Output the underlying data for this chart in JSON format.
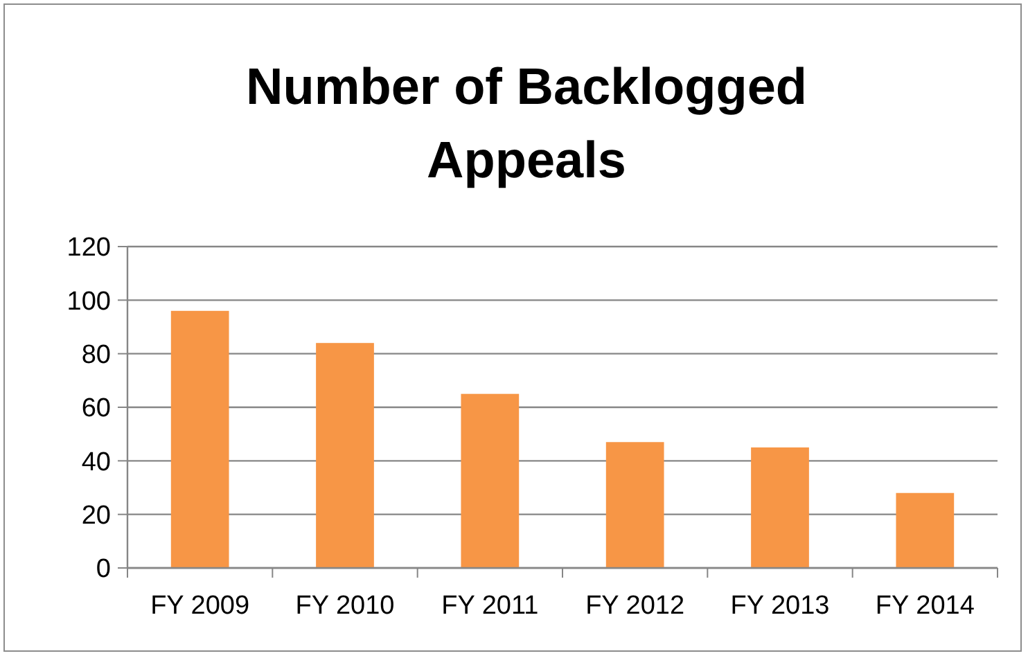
{
  "chart_data": {
    "type": "bar",
    "title": "Number of Backlogged Appeals",
    "categories": [
      "FY 2009",
      "FY 2010",
      "FY 2011",
      "FY 2012",
      "FY 2013",
      "FY 2014"
    ],
    "values": [
      96,
      84,
      65,
      47,
      45,
      28
    ],
    "color": "#f79646",
    "ylim": [
      0,
      120
    ],
    "yticks": [
      0,
      20,
      40,
      60,
      80,
      100,
      120
    ],
    "grid": "y"
  }
}
